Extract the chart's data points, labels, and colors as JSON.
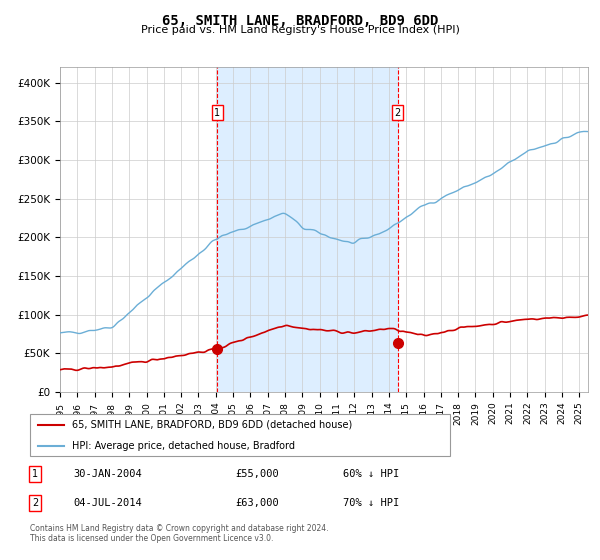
{
  "title": "65, SMITH LANE, BRADFORD, BD9 6DD",
  "subtitle": "Price paid vs. HM Land Registry's House Price Index (HPI)",
  "hpi_color": "#a8c8e8",
  "hpi_line_color": "#6baed6",
  "price_line_color": "#cc0000",
  "marker_color": "#cc0000",
  "bg_color": "#ffffff",
  "plot_bg": "#ffffff",
  "shaded_bg": "#ddeeff",
  "grid_color": "#cccccc",
  "ylim": [
    0,
    420000
  ],
  "ytick_labels": [
    "£0",
    "£50K",
    "£100K",
    "£150K",
    "£200K",
    "£250K",
    "£300K",
    "£350K",
    "£400K"
  ],
  "ytick_values": [
    0,
    50000,
    100000,
    150000,
    200000,
    250000,
    300000,
    350000,
    400000
  ],
  "sale1_year": 2004.08,
  "sale1_price": 55000,
  "sale1_label": "1",
  "sale1_date": "30-JAN-2004",
  "sale1_pct": "60% ↓ HPI",
  "sale2_year": 2014.5,
  "sale2_price": 63000,
  "sale2_label": "2",
  "sale2_date": "04-JUL-2014",
  "sale2_pct": "70% ↓ HPI",
  "legend_line1": "65, SMITH LANE, BRADFORD, BD9 6DD (detached house)",
  "legend_line2": "HPI: Average price, detached house, Bradford",
  "footnote": "Contains HM Land Registry data © Crown copyright and database right 2024.\nThis data is licensed under the Open Government Licence v3.0.",
  "xstart": 1995.0,
  "xend": 2025.5
}
